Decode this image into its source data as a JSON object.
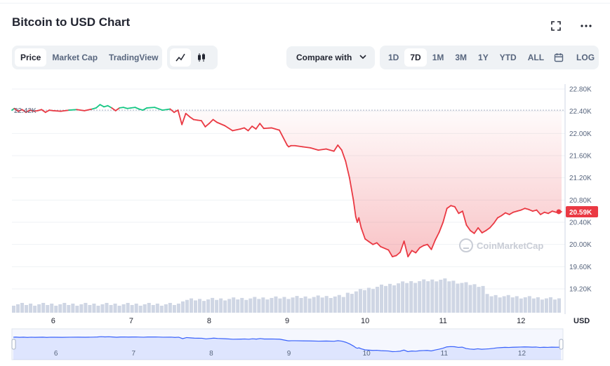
{
  "header": {
    "title": "Bitcoin to USD Chart",
    "fullscreen_icon": "expand-icon",
    "more_icon": "more-dots-icon"
  },
  "toolbar": {
    "view_tabs": [
      {
        "label": "Price",
        "active": true
      },
      {
        "label": "Market Cap",
        "active": false
      },
      {
        "label": "TradingView",
        "active": false
      }
    ],
    "chart_type_icons": [
      "line-chart-icon",
      "candlestick-icon"
    ],
    "compare_label": "Compare with",
    "ranges": [
      {
        "label": "1D",
        "active": false
      },
      {
        "label": "7D",
        "active": true
      },
      {
        "label": "1M",
        "active": false
      },
      {
        "label": "3M",
        "active": false
      },
      {
        "label": "1Y",
        "active": false
      },
      {
        "label": "YTD",
        "active": false
      },
      {
        "label": "ALL",
        "active": false
      }
    ],
    "calendar_icon": "calendar-icon",
    "log_label": "LOG"
  },
  "watermark": "CoinMarketCap",
  "colors": {
    "up": "#16c784",
    "down": "#ea3943",
    "grid": "#eff2f5",
    "volume": "#cfd6e4",
    "navigator": "#3861fb"
  },
  "chart_data": {
    "type": "line",
    "title": "Bitcoin to USD Chart",
    "currency_label": "USD",
    "y_ticks": [
      "22.80K",
      "22.40K",
      "22.00K",
      "21.60K",
      "21.20K",
      "20.80K",
      "20.40K",
      "20.00K",
      "19.60K",
      "19.20K"
    ],
    "ylim": [
      19200,
      22800
    ],
    "x_ticks": [
      "6",
      "7",
      "8",
      "9",
      "10",
      "11",
      "12"
    ],
    "x_tick_values": [
      6,
      7,
      8,
      9,
      10,
      11,
      12
    ],
    "xlim": [
      5.47,
      12.52
    ],
    "reference_value": 22420,
    "reference_label": "22.42K",
    "current_value": 20590,
    "current_label": "20.59K",
    "series": [
      {
        "x": [
          5.47,
          5.5,
          5.55,
          5.6,
          5.65,
          5.7,
          5.75,
          5.8,
          5.85,
          5.9,
          5.95,
          6.0,
          6.1,
          6.2,
          6.3,
          6.4,
          6.5,
          6.55,
          6.6,
          6.65,
          6.7,
          6.75,
          6.8,
          6.85,
          6.9,
          6.95,
          7.0,
          7.05,
          7.1,
          7.15,
          7.2,
          7.3,
          7.4,
          7.5,
          7.55,
          7.6,
          7.65,
          7.7,
          7.75,
          7.8,
          7.85,
          7.9,
          7.95,
          8.0,
          8.05,
          8.1,
          8.2,
          8.3,
          8.4,
          8.45,
          8.5,
          8.55,
          8.6,
          8.65,
          8.7,
          8.8,
          8.9,
          9.0,
          9.02,
          9.05,
          9.1,
          9.2,
          9.3,
          9.4,
          9.5,
          9.6,
          9.65,
          9.7,
          9.75,
          9.8,
          9.85,
          9.88,
          9.9,
          9.92,
          9.95,
          10.0,
          10.05,
          10.1,
          10.15,
          10.2,
          10.3,
          10.35,
          10.4,
          10.45,
          10.5,
          10.55,
          10.6,
          10.65,
          10.7,
          10.75,
          10.8,
          10.85,
          10.9,
          10.95,
          11.0,
          11.05,
          11.1,
          11.15,
          11.2,
          11.25,
          11.3,
          11.35,
          11.4,
          11.45,
          11.5,
          11.55,
          11.6,
          11.65,
          11.7,
          11.75,
          11.8,
          11.85,
          11.9,
          11.95,
          12.0,
          12.05,
          12.1,
          12.15,
          12.2,
          12.25,
          12.3,
          12.35,
          12.4,
          12.45,
          12.52
        ],
        "y": [
          22420,
          22450,
          22400,
          22430,
          22380,
          22420,
          22400,
          22410,
          22430,
          22380,
          22420,
          22410,
          22400,
          22420,
          22430,
          22410,
          22440,
          22460,
          22520,
          22480,
          22500,
          22460,
          22410,
          22460,
          22470,
          22450,
          22460,
          22470,
          22440,
          22420,
          22460,
          22470,
          22420,
          22440,
          22380,
          22420,
          22160,
          22360,
          22300,
          22250,
          22240,
          22230,
          22120,
          22180,
          22250,
          22200,
          22140,
          22050,
          22080,
          22100,
          22050,
          22130,
          22080,
          22180,
          22090,
          22100,
          22060,
          21790,
          21760,
          21780,
          21780,
          21760,
          21740,
          21700,
          21720,
          21680,
          21790,
          21700,
          21500,
          21200,
          20800,
          20500,
          20400,
          20480,
          20300,
          20100,
          20050,
          20000,
          20030,
          19960,
          19900,
          19780,
          19800,
          19860,
          20060,
          19780,
          19890,
          19850,
          19940,
          19980,
          20000,
          19910,
          20080,
          20220,
          20400,
          20650,
          20700,
          20680,
          20560,
          20600,
          20350,
          20250,
          20200,
          20300,
          20210,
          20250,
          20300,
          20380,
          20480,
          20520,
          20570,
          20540,
          20580,
          20600,
          20620,
          20650,
          20630,
          20600,
          20620,
          20540,
          20580,
          20560,
          20600,
          20580,
          20590
        ]
      }
    ]
  }
}
